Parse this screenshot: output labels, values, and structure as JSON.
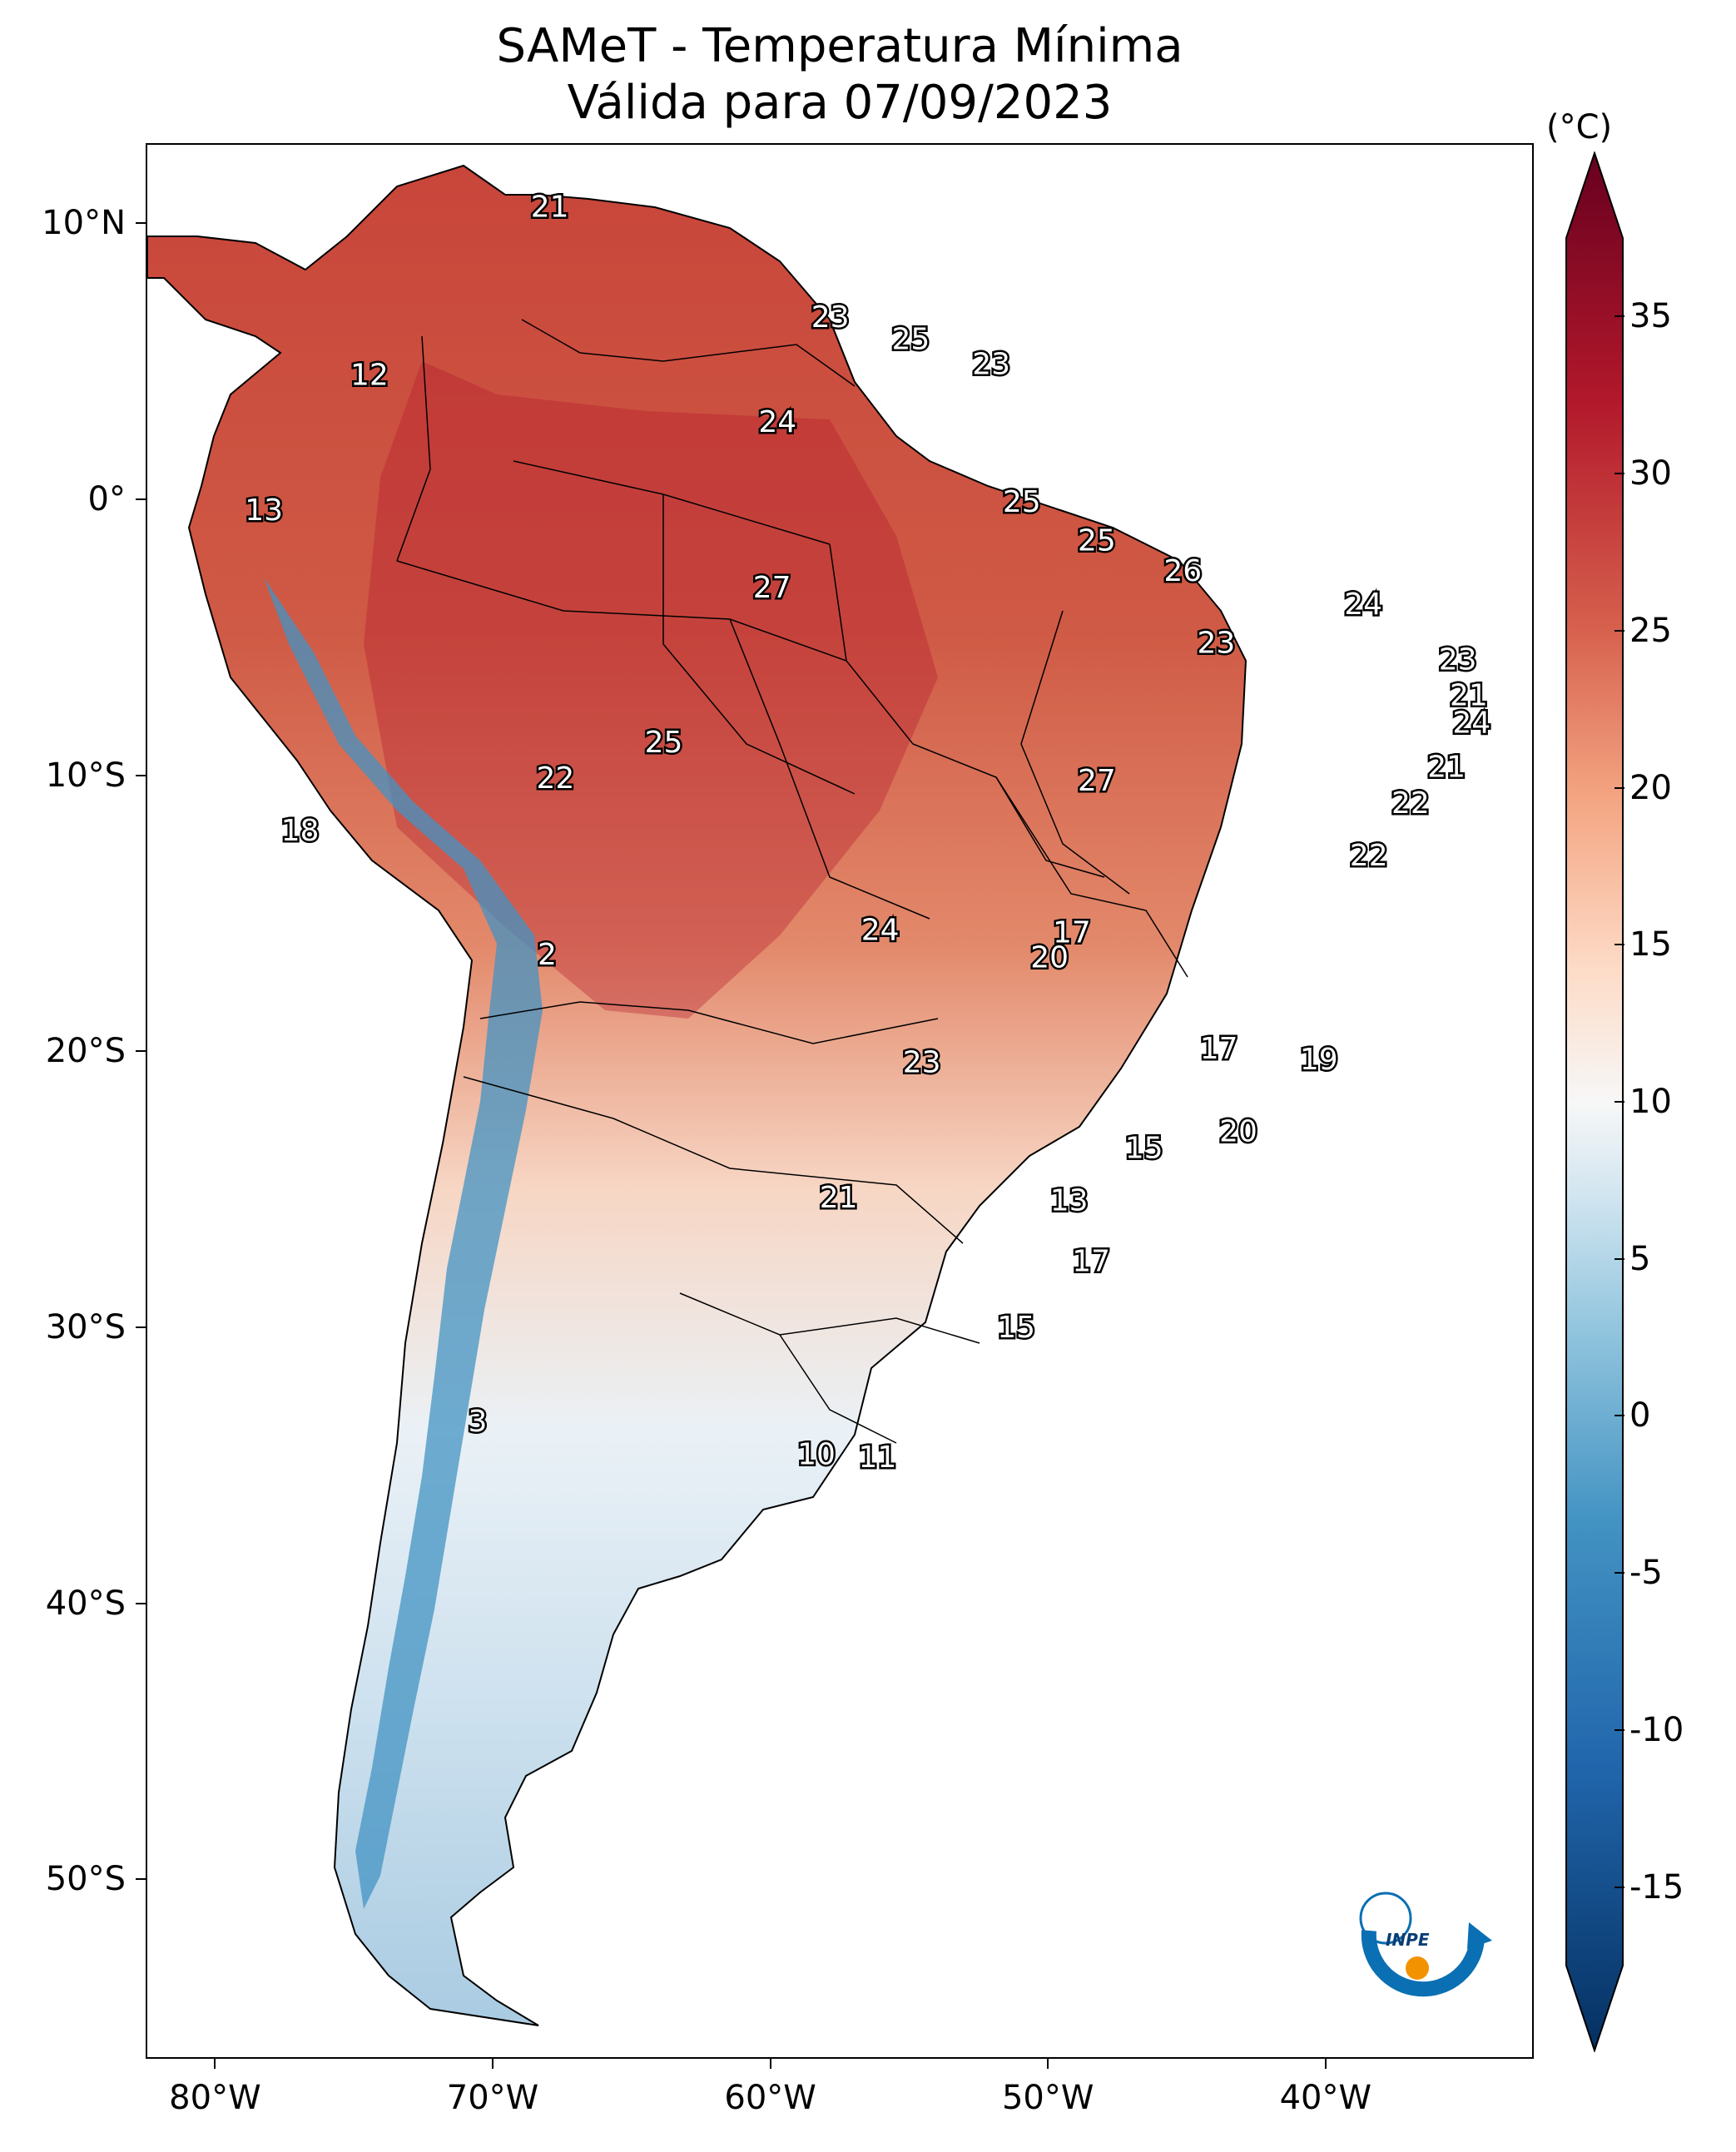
{
  "title": {
    "line1": "SAMeT - Temperatura Mínima",
    "line2": "Válida para 07/09/2023"
  },
  "axes": {
    "lat_ticks": [
      {
        "value": 10,
        "label": "10°N"
      },
      {
        "value": 0,
        "label": "0°"
      },
      {
        "value": -10,
        "label": "10°S"
      },
      {
        "value": -20,
        "label": "20°S"
      },
      {
        "value": -30,
        "label": "30°S"
      },
      {
        "value": -40,
        "label": "40°S"
      },
      {
        "value": -50,
        "label": "50°S"
      }
    ],
    "lon_ticks": [
      {
        "value": -80,
        "label": "80°W"
      },
      {
        "value": -70,
        "label": "70°W"
      },
      {
        "value": -60,
        "label": "60°W"
      },
      {
        "value": -50,
        "label": "50°W"
      },
      {
        "value": -40,
        "label": "40°W"
      }
    ],
    "extent": {
      "lon_min": -82.5,
      "lon_max": -32.5,
      "lat_min": -56.5,
      "lat_max": 12.9
    }
  },
  "colorbar": {
    "unit": "(°C)",
    "range": [
      -17.5,
      37.5
    ],
    "ticks": [
      {
        "value": 35,
        "label": "35"
      },
      {
        "value": 30,
        "label": "30"
      },
      {
        "value": 25,
        "label": "25"
      },
      {
        "value": 20,
        "label": "20"
      },
      {
        "value": 15,
        "label": "15"
      },
      {
        "value": 10,
        "label": "10"
      },
      {
        "value": 5,
        "label": "5"
      },
      {
        "value": 0,
        "label": "0"
      },
      {
        "value": -5,
        "label": "-5"
      },
      {
        "value": -10,
        "label": "-10"
      },
      {
        "value": -15,
        "label": "-15"
      }
    ],
    "colors": [
      "#053061",
      "#2166ac",
      "#4393c3",
      "#92c5de",
      "#d1e5f0",
      "#f7f7f7",
      "#fddbc7",
      "#f4a582",
      "#d6604d",
      "#b2182b",
      "#67001f"
    ]
  },
  "station_values": [
    {
      "lon": -68.0,
      "lat": 10.6,
      "value": "21"
    },
    {
      "lon": -57.9,
      "lat": 6.6,
      "value": "23"
    },
    {
      "lon": -55.0,
      "lat": 5.8,
      "value": "25"
    },
    {
      "lon": -52.1,
      "lat": 4.9,
      "value": "23"
    },
    {
      "lon": -74.5,
      "lat": 4.5,
      "value": "12"
    },
    {
      "lon": -59.8,
      "lat": 2.8,
      "value": "24"
    },
    {
      "lon": -51.0,
      "lat": -0.1,
      "value": "25"
    },
    {
      "lon": -78.3,
      "lat": -0.4,
      "value": "13"
    },
    {
      "lon": -48.3,
      "lat": -1.5,
      "value": "25"
    },
    {
      "lon": -45.2,
      "lat": -2.6,
      "value": "26"
    },
    {
      "lon": -60.0,
      "lat": -3.2,
      "value": "27"
    },
    {
      "lon": -38.7,
      "lat": -3.8,
      "value": "24"
    },
    {
      "lon": -44.0,
      "lat": -5.2,
      "value": "23"
    },
    {
      "lon": -35.3,
      "lat": -5.8,
      "value": "23"
    },
    {
      "lon": -34.9,
      "lat": -7.1,
      "value": "21"
    },
    {
      "lon": -34.8,
      "lat": -8.1,
      "value": "24"
    },
    {
      "lon": -63.9,
      "lat": -8.8,
      "value": "25"
    },
    {
      "lon": -35.7,
      "lat": -9.7,
      "value": "21"
    },
    {
      "lon": -67.8,
      "lat": -10.1,
      "value": "22"
    },
    {
      "lon": -48.3,
      "lat": -10.2,
      "value": "27"
    },
    {
      "lon": -37.0,
      "lat": -11.0,
      "value": "22"
    },
    {
      "lon": -38.5,
      "lat": -12.9,
      "value": "22"
    },
    {
      "lon": -77.0,
      "lat": -12.0,
      "value": "18"
    },
    {
      "lon": -56.1,
      "lat": -15.6,
      "value": "24"
    },
    {
      "lon": -49.2,
      "lat": -15.7,
      "value": "17"
    },
    {
      "lon": -50.0,
      "lat": -16.6,
      "value": "20"
    },
    {
      "lon": -68.1,
      "lat": -16.5,
      "value": "2"
    },
    {
      "lon": -43.9,
      "lat": -19.9,
      "value": "17"
    },
    {
      "lon": -40.3,
      "lat": -20.3,
      "value": "19"
    },
    {
      "lon": -54.6,
      "lat": -20.4,
      "value": "23"
    },
    {
      "lon": -43.2,
      "lat": -22.9,
      "value": "20"
    },
    {
      "lon": -46.6,
      "lat": -23.5,
      "value": "15"
    },
    {
      "lon": -57.6,
      "lat": -25.3,
      "value": "21"
    },
    {
      "lon": -49.3,
      "lat": -25.4,
      "value": "13"
    },
    {
      "lon": -48.5,
      "lat": -27.6,
      "value": "17"
    },
    {
      "lon": -51.2,
      "lat": -30.0,
      "value": "15"
    },
    {
      "lon": -70.6,
      "lat": -33.4,
      "value": "3"
    },
    {
      "lon": -58.4,
      "lat": -34.6,
      "value": "10"
    },
    {
      "lon": -56.2,
      "lat": -34.7,
      "value": "11"
    }
  ],
  "logo": {
    "text": "INPE",
    "arc_color": "#0b6fb3",
    "dot_color": "#f39200"
  }
}
